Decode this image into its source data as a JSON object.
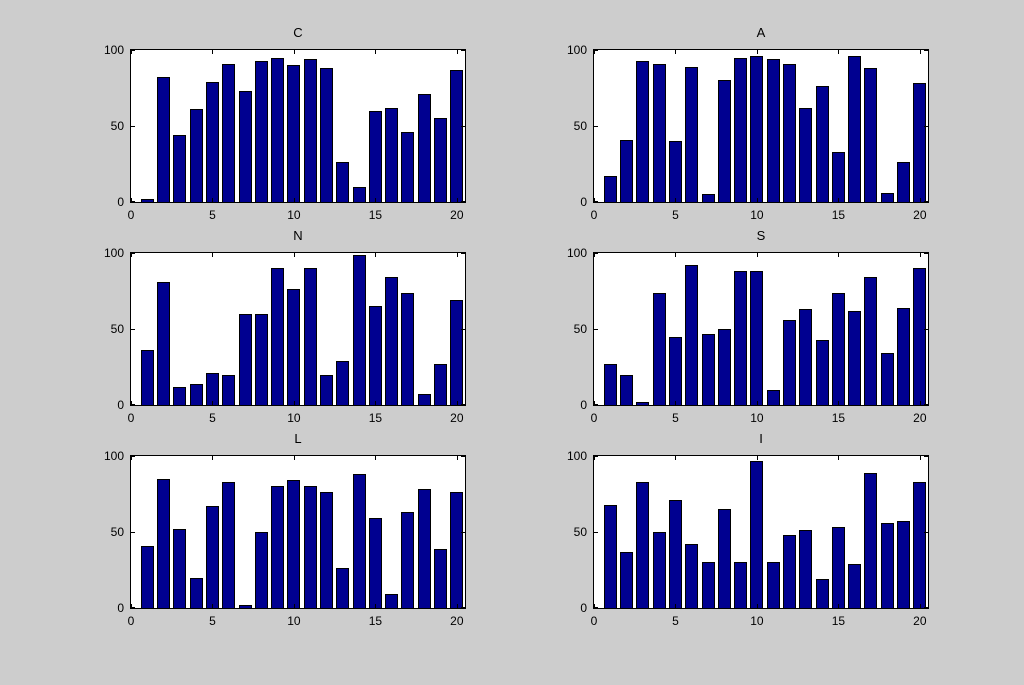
{
  "figure": {
    "background_color": "#cdcdcd",
    "plot_background_color": "#ffffff",
    "bar_color": "#000090",
    "bar_edge_color": "#000000",
    "axis_color": "#000000",
    "text_color": "#000000"
  },
  "chart_data": [
    {
      "type": "bar",
      "title": "C",
      "x_values": [
        1,
        2,
        3,
        4,
        5,
        6,
        7,
        8,
        9,
        10,
        11,
        12,
        13,
        14,
        15,
        16,
        17,
        18,
        19,
        20
      ],
      "values": [
        2,
        82,
        44,
        61,
        79,
        91,
        73,
        93,
        95,
        90,
        94,
        88,
        26,
        10,
        60,
        62,
        46,
        71,
        55,
        87
      ],
      "xlabel": "",
      "ylabel": "",
      "xlim": [
        0,
        20.5
      ],
      "ylim": [
        0,
        100
      ],
      "xticks": [
        0,
        5,
        10,
        15,
        20
      ],
      "yticks": [
        0,
        50,
        100
      ],
      "grid": false,
      "legend": "none",
      "bar_width": 0.8
    },
    {
      "type": "bar",
      "title": "A",
      "x_values": [
        1,
        2,
        3,
        4,
        5,
        6,
        7,
        8,
        9,
        10,
        11,
        12,
        13,
        14,
        15,
        16,
        17,
        18,
        19,
        20
      ],
      "values": [
        17,
        41,
        93,
        91,
        40,
        89,
        5,
        80,
        95,
        96,
        94,
        91,
        62,
        76,
        33,
        96,
        88,
        6,
        26,
        78
      ],
      "xlabel": "",
      "ylabel": "",
      "xlim": [
        0,
        20.5
      ],
      "ylim": [
        0,
        100
      ],
      "xticks": [
        0,
        5,
        10,
        15,
        20
      ],
      "yticks": [
        0,
        50,
        100
      ],
      "grid": false,
      "legend": "none",
      "bar_width": 0.8
    },
    {
      "type": "bar",
      "title": "N",
      "x_values": [
        1,
        2,
        3,
        4,
        5,
        6,
        7,
        8,
        9,
        10,
        11,
        12,
        13,
        14,
        15,
        16,
        17,
        18,
        19,
        20
      ],
      "values": [
        36,
        81,
        12,
        14,
        21,
        20,
        60,
        60,
        90,
        76,
        90,
        20,
        29,
        99,
        65,
        84,
        74,
        7,
        27,
        69
      ],
      "xlabel": "",
      "ylabel": "",
      "xlim": [
        0,
        20.5
      ],
      "ylim": [
        0,
        100
      ],
      "xticks": [
        0,
        5,
        10,
        15,
        20
      ],
      "yticks": [
        0,
        50,
        100
      ],
      "grid": false,
      "legend": "none",
      "bar_width": 0.8
    },
    {
      "type": "bar",
      "title": "S",
      "x_values": [
        1,
        2,
        3,
        4,
        5,
        6,
        7,
        8,
        9,
        10,
        11,
        12,
        13,
        14,
        15,
        16,
        17,
        18,
        19,
        20
      ],
      "values": [
        27,
        20,
        2,
        74,
        45,
        92,
        47,
        50,
        88,
        88,
        10,
        56,
        63,
        43,
        74,
        62,
        84,
        34,
        64,
        90
      ],
      "xlabel": "",
      "ylabel": "",
      "xlim": [
        0,
        20.5
      ],
      "ylim": [
        0,
        100
      ],
      "xticks": [
        0,
        5,
        10,
        15,
        20
      ],
      "yticks": [
        0,
        50,
        100
      ],
      "grid": false,
      "legend": "none",
      "bar_width": 0.8
    },
    {
      "type": "bar",
      "title": "L",
      "x_values": [
        1,
        2,
        3,
        4,
        5,
        6,
        7,
        8,
        9,
        10,
        11,
        12,
        13,
        14,
        15,
        16,
        17,
        18,
        19,
        20
      ],
      "values": [
        41,
        85,
        52,
        20,
        67,
        83,
        2,
        50,
        80,
        84,
        80,
        76,
        26,
        88,
        59,
        9,
        63,
        78,
        39,
        76
      ],
      "xlabel": "",
      "ylabel": "",
      "xlim": [
        0,
        20.5
      ],
      "ylim": [
        0,
        100
      ],
      "xticks": [
        0,
        5,
        10,
        15,
        20
      ],
      "yticks": [
        0,
        50,
        100
      ],
      "grid": false,
      "legend": "none",
      "bar_width": 0.8
    },
    {
      "type": "bar",
      "title": "I",
      "x_values": [
        1,
        2,
        3,
        4,
        5,
        6,
        7,
        8,
        9,
        10,
        11,
        12,
        13,
        14,
        15,
        16,
        17,
        18,
        19,
        20
      ],
      "values": [
        68,
        37,
        83,
        50,
        71,
        42,
        30,
        65,
        30,
        97,
        30,
        48,
        51,
        19,
        53,
        29,
        89,
        56,
        57,
        83
      ],
      "xlabel": "",
      "ylabel": "",
      "xlim": [
        0,
        20.5
      ],
      "ylim": [
        0,
        100
      ],
      "xticks": [
        0,
        5,
        10,
        15,
        20
      ],
      "yticks": [
        0,
        50,
        100
      ],
      "grid": false,
      "legend": "none",
      "bar_width": 0.8
    }
  ]
}
